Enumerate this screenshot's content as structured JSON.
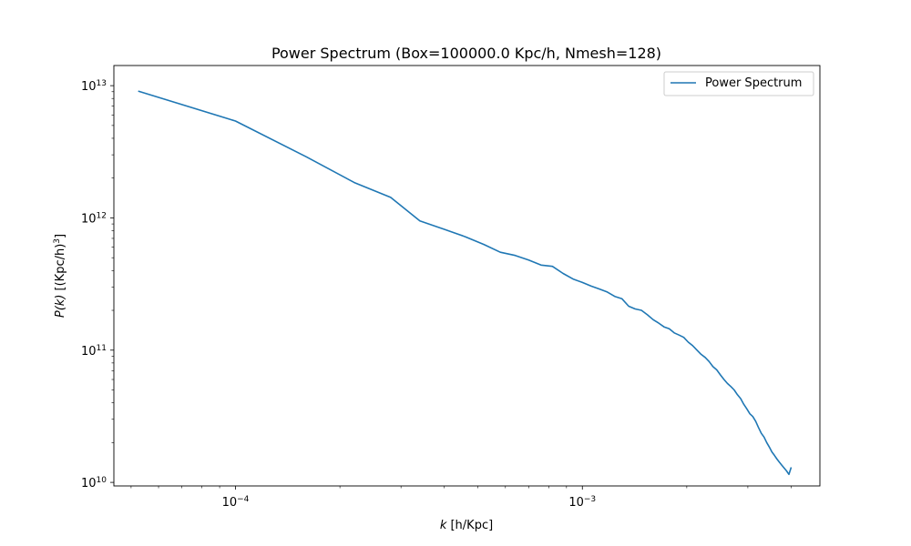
{
  "chart_data": {
    "type": "line",
    "title": "Power Spectrum (Box=100000.0 Kpc/h, Nmesh=128)",
    "xlabel": {
      "symbol": "k",
      "unit": " [h/Kpc]"
    },
    "ylabel": {
      "prefix": "P(k)",
      "unit": " [(Kpc/h)",
      "exp": "3",
      "suffix": "]"
    },
    "xscale": "log",
    "yscale": "log",
    "xlim": [
      4.46e-05,
      0.00484
    ],
    "ylim": [
      9400000000.0,
      14200000000000.0
    ],
    "x_major_ticks": [
      {
        "value": 0.0001,
        "base": "10",
        "exp": "−4"
      },
      {
        "value": 0.001,
        "base": "10",
        "exp": "−3"
      }
    ],
    "y_major_ticks": [
      {
        "value": 10000000000.0,
        "base": "10",
        "exp": "10"
      },
      {
        "value": 100000000000.0,
        "base": "10",
        "exp": "11"
      },
      {
        "value": 1000000000000.0,
        "base": "10",
        "exp": "12"
      },
      {
        "value": 10000000000000.0,
        "base": "10",
        "exp": "13"
      }
    ],
    "legend": {
      "position": "top-right",
      "entries": [
        "Power Spectrum"
      ]
    },
    "series": [
      {
        "name": "Power Spectrum",
        "color": "#1f77b4",
        "x": [
          5.24e-05,
          0.0001,
          0.00016,
          0.00022,
          0.00028,
          0.00034,
          0.0004,
          0.00046,
          0.00052,
          0.00058,
          0.00064,
          0.0007,
          0.00076,
          0.00082,
          0.00088,
          0.00094,
          0.001,
          0.00106,
          0.00112,
          0.00118,
          0.00124,
          0.0013,
          0.00136,
          0.00142,
          0.00148,
          0.00154,
          0.0016,
          0.00166,
          0.00172,
          0.00178,
          0.00184,
          0.0019,
          0.00196,
          0.00202,
          0.00208,
          0.00214,
          0.0022,
          0.00226,
          0.00232,
          0.00238,
          0.00244,
          0.0025,
          0.00256,
          0.00262,
          0.00268,
          0.00274,
          0.0028,
          0.00286,
          0.00292,
          0.00298,
          0.00304,
          0.0031,
          0.00316,
          0.00322,
          0.00328,
          0.00334,
          0.0034,
          0.00346,
          0.00352,
          0.00358,
          0.00364,
          0.0037,
          0.00376,
          0.00382,
          0.00388,
          0.00394,
          0.004
        ],
        "values": [
          9100000000000.0,
          5400000000000.0,
          2900000000000.0,
          1850000000000.0,
          1430000000000.0,
          950000000000.0,
          820000000000.0,
          720000000000.0,
          630000000000.0,
          550000000000.0,
          520000000000.0,
          480000000000.0,
          440000000000.0,
          430000000000.0,
          380000000000.0,
          345000000000.0,
          325000000000.0,
          305000000000.0,
          290000000000.0,
          275000000000.0,
          255000000000.0,
          245000000000.0,
          215000000000.0,
          205000000000.0,
          200000000000.0,
          185000000000.0,
          170000000000.0,
          160000000000.0,
          150000000000.0,
          145000000000.0,
          135000000000.0,
          130000000000.0,
          125000000000.0,
          115000000000.0,
          108000000000.0,
          100000000000.0,
          93000000000.0,
          88000000000.0,
          82000000000.0,
          75000000000.0,
          71000000000.0,
          65000000000.0,
          60000000000.0,
          56000000000.0,
          53000000000.0,
          50000000000.0,
          46000000000.0,
          43000000000.0,
          39000000000.0,
          36000000000.0,
          33000000000.0,
          31500000000.0,
          29000000000.0,
          26000000000.0,
          23500000000.0,
          22000000000.0,
          20000000000.0,
          18500000000.0,
          17000000000.0,
          16000000000.0,
          15000000000.0,
          14200000000.0,
          13500000000.0,
          12800000000.0,
          12200000000.0,
          11500000000.0,
          13000000000.0
        ]
      }
    ]
  }
}
